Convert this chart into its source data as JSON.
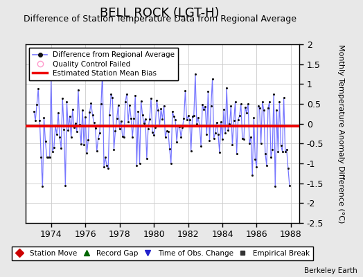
{
  "title": "BELL ROCK (LGT-H)",
  "subtitle": "Difference of Station Temperature Data from Regional Average",
  "ylabel": "Monthly Temperature Anomaly Difference (°C)",
  "bias": -0.05,
  "xlim": [
    1972.5,
    1988.5
  ],
  "ylim": [
    -2.5,
    2.0
  ],
  "yticks": [
    -2.5,
    -2.0,
    -1.5,
    -1.0,
    -0.5,
    0.0,
    0.5,
    1.0,
    1.5,
    2.0
  ],
  "ytick_labels": [
    "-2.5",
    "-2",
    "-1.5",
    "-1",
    "-0.5",
    "0",
    "0.5",
    "1",
    "1.5",
    "2"
  ],
  "xticks": [
    1974,
    1976,
    1978,
    1980,
    1982,
    1984,
    1986,
    1988
  ],
  "bg_color": "#e8e8e8",
  "plot_bg_color": "#ffffff",
  "line_color": "#7777ff",
  "marker_color": "#111111",
  "bias_color": "#ee0000",
  "title_fontsize": 13,
  "subtitle_fontsize": 9,
  "tick_fontsize": 9,
  "watermark": "Berkeley Earth",
  "seed": 42,
  "n_points": 180,
  "start_year": 1973.0
}
